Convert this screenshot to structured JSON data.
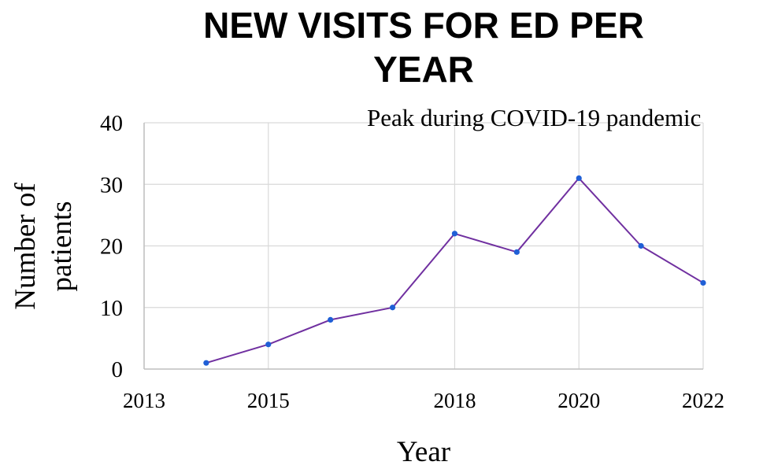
{
  "chart_data": {
    "type": "line",
    "title_lines": [
      "NEW VISITS FOR ED PER",
      "YEAR"
    ],
    "annotation": "Peak during COVID-19 pandemic",
    "xlabel": "Year",
    "ylabel_lines": [
      "Number of",
      "patients"
    ],
    "xlim": [
      2013,
      2022
    ],
    "ylim": [
      0,
      40
    ],
    "x_ticks": [
      2013,
      2015,
      2018,
      2020,
      2022
    ],
    "x_tick_labels": [
      "2013",
      "2015",
      "2018",
      "2020",
      "2022"
    ],
    "y_ticks": [
      0,
      10,
      20,
      30,
      40
    ],
    "y_tick_labels": [
      "0",
      "10",
      "20",
      "30",
      "40"
    ],
    "grid": true,
    "series": [
      {
        "x": [
          2014,
          2015,
          2016,
          2017,
          2018,
          2019,
          2020,
          2021,
          2022
        ],
        "y": [
          1,
          4,
          8,
          10,
          22,
          19,
          31,
          20,
          14
        ],
        "line_color": "#7030a0",
        "marker_color": "#1f5fd6"
      }
    ]
  }
}
